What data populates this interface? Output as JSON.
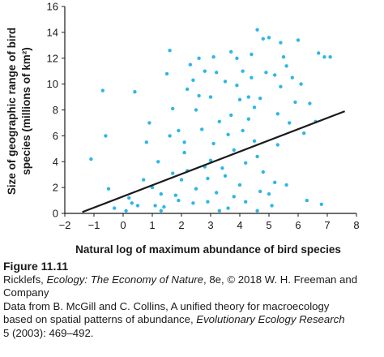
{
  "chart_data": {
    "type": "scatter",
    "xlabel": "Natural log of maximum abundance of bird species",
    "ylabel_lines": [
      "Size of geographic range of bird",
      "species (millions of km²)"
    ],
    "xlim": [
      -2,
      8
    ],
    "ylim": [
      0,
      16
    ],
    "x_ticks": [
      -2,
      -1,
      0,
      1,
      2,
      3,
      4,
      5,
      6,
      7,
      8
    ],
    "y_ticks": [
      0,
      2,
      4,
      6,
      8,
      10,
      12,
      14,
      16
    ],
    "grid": false,
    "point_color": "#2eb7e4",
    "line_color": "#1a1a1a",
    "trendline": {
      "x": [
        -1.4,
        7.6
      ],
      "y": [
        0.1,
        7.9
      ]
    },
    "points": [
      [
        -1.1,
        4.2
      ],
      [
        -0.7,
        9.5
      ],
      [
        -0.6,
        6.0
      ],
      [
        -0.5,
        1.9
      ],
      [
        -0.3,
        0.4
      ],
      [
        0.1,
        0.2
      ],
      [
        0.2,
        1.2
      ],
      [
        0.4,
        9.4
      ],
      [
        0.5,
        0.6
      ],
      [
        0.8,
        5.5
      ],
      [
        0.9,
        7.0
      ],
      [
        1.0,
        2.0
      ],
      [
        1.2,
        4.0
      ],
      [
        1.3,
        1.5
      ],
      [
        1.4,
        0.5
      ],
      [
        1.5,
        10.8
      ],
      [
        1.6,
        12.6
      ],
      [
        1.7,
        3.1
      ],
      [
        1.9,
        6.4
      ],
      [
        2.1,
        5.5
      ],
      [
        2.2,
        9.6
      ],
      [
        2.3,
        11.5
      ],
      [
        2.5,
        8.0
      ],
      [
        2.6,
        12.0
      ],
      [
        2.8,
        11.0
      ],
      [
        2.9,
        0.9
      ],
      [
        3.0,
        9.0
      ],
      [
        3.1,
        12.1
      ],
      [
        3.3,
        7.1
      ],
      [
        3.5,
        10.2
      ],
      [
        3.7,
        12.5
      ],
      [
        3.9,
        9.9
      ],
      [
        4.1,
        11.0
      ],
      [
        4.3,
        9.0
      ],
      [
        4.4,
        12.3
      ],
      [
        4.5,
        8.2
      ],
      [
        4.6,
        14.2
      ],
      [
        4.8,
        13.5
      ],
      [
        5.0,
        13.6
      ],
      [
        5.2,
        10.7
      ],
      [
        5.4,
        13.2
      ],
      [
        5.5,
        12.1
      ],
      [
        5.6,
        11.4
      ],
      [
        5.8,
        10.5
      ],
      [
        6.0,
        13.4
      ],
      [
        6.1,
        10.0
      ],
      [
        6.4,
        8.5
      ],
      [
        6.7,
        12.4
      ],
      [
        6.9,
        12.1
      ],
      [
        7.1,
        12.1
      ],
      [
        6.6,
        7.1
      ],
      [
        5.9,
        8.6
      ],
      [
        6.2,
        6.2
      ],
      [
        5.3,
        5.3
      ],
      [
        5.7,
        7.0
      ],
      [
        5.4,
        9.8
      ],
      [
        4.9,
        10.9
      ],
      [
        3.4,
        3.5
      ],
      [
        3.8,
        4.9
      ],
      [
        2.7,
        6.5
      ],
      [
        2.0,
        2.6
      ],
      [
        1.8,
        1.4
      ],
      [
        2.4,
        0.8
      ],
      [
        3.2,
        1.6
      ],
      [
        3.6,
        0.4
      ],
      [
        4.0,
        2.2
      ],
      [
        4.2,
        0.9
      ],
      [
        4.7,
        1.7
      ],
      [
        5.1,
        0.6
      ],
      [
        5.6,
        2.2
      ],
      [
        6.3,
        1.0
      ],
      [
        6.8,
        0.7
      ],
      [
        1.1,
        0.6
      ],
      [
        2.2,
        3.3
      ],
      [
        3.0,
        4.1
      ],
      [
        4.5,
        5.6
      ],
      [
        3.7,
        7.6
      ],
      [
        4.1,
        6.4
      ],
      [
        4.6,
        4.4
      ],
      [
        2.9,
        2.7
      ],
      [
        3.3,
        0.2
      ],
      [
        2.5,
        1.9
      ],
      [
        1.6,
        6.0
      ],
      [
        1.3,
        0.2
      ],
      [
        0.7,
        2.6
      ],
      [
        0.3,
        0.8
      ],
      [
        4.8,
        3.2
      ],
      [
        5.2,
        2.4
      ],
      [
        3.5,
        2.9
      ],
      [
        4.0,
        8.8
      ],
      [
        4.4,
        10.5
      ],
      [
        3.9,
        12.0
      ],
      [
        4.2,
        3.9
      ],
      [
        3.8,
        1.3
      ],
      [
        4.6,
        0.2
      ],
      [
        5.0,
        1.5
      ],
      [
        2.8,
        3.6
      ],
      [
        2.1,
        4.7
      ],
      [
        1.9,
        1.0
      ],
      [
        3.1,
        5.4
      ],
      [
        3.6,
        6.1
      ],
      [
        4.3,
        7.3
      ],
      [
        4.7,
        8.9
      ],
      [
        5.3,
        7.7
      ],
      [
        2.6,
        9.1
      ],
      [
        3.2,
        10.9
      ],
      [
        2.4,
        10.3
      ],
      [
        1.7,
        8.1
      ]
    ]
  },
  "caption": {
    "figure_label": "Figure 11.11",
    "source_author": "Ricklefs, ",
    "source_title": "Ecology: The Economy of Nature",
    "source_rest": ", 8e, © 2018 W. H. Freeman and",
    "source_rest2": "Company",
    "data_line1": "Data from B. McGill and C. Collins, A unified theory for macroecology",
    "data_line2_pre": "based on spatial patterns of abundance, ",
    "data_line2_journal": "Evolutionary Ecology Research",
    "data_line3": "5 (2003): 469–492."
  }
}
